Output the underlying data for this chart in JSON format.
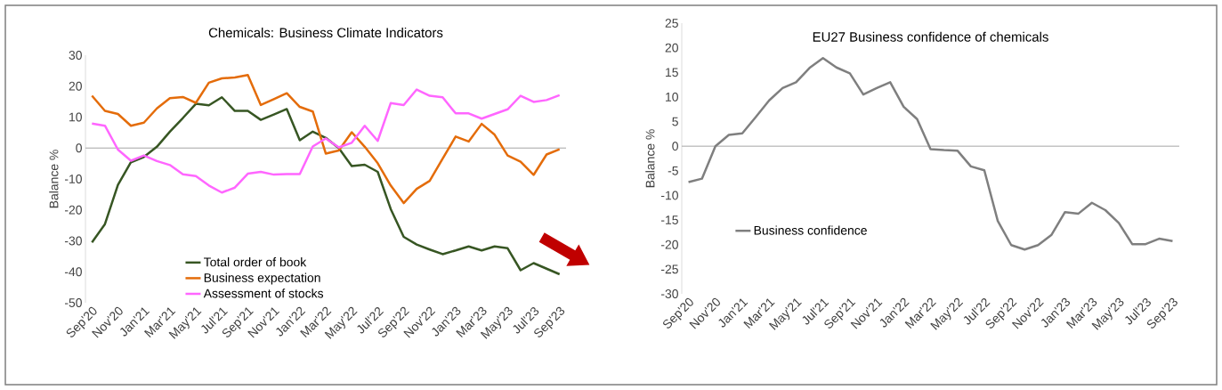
{
  "chart_data": [
    {
      "type": "line",
      "title": "Chemicals: Business Climate Indicators",
      "ylabel": "Balance %",
      "categories": [
        "Sep'20",
        null,
        "Nov'20",
        null,
        "Jan'21",
        null,
        "Mar'21",
        null,
        "May'21",
        null,
        "Jul'21",
        null,
        "Sep'21",
        null,
        "Nov'21",
        null,
        "Jan'22",
        null,
        "Mar'22",
        null,
        "May'22",
        null,
        "Jul'22",
        null,
        "Sep'22",
        null,
        "Nov'22",
        null,
        "Jan'23",
        null,
        "Mar'23",
        null,
        "May'23",
        null,
        "Jul'23",
        null,
        "Sep'23"
      ],
      "series": [
        {
          "name": "Total order of book",
          "color": "#375623",
          "values": [
            -30.5,
            -24.6,
            -11.9,
            -4.6,
            -2.9,
            0.4,
            5.3,
            9.7,
            14.3,
            13.8,
            16.4,
            12.0,
            12.0,
            9.1,
            10.8,
            12.6,
            2.5,
            5.3,
            3.3,
            0.0,
            -5.8,
            -5.4,
            -7.7,
            -19.7,
            -28.7,
            -31.2,
            -32.8,
            -34.3,
            -33.1,
            -31.8,
            -33.1,
            -31.8,
            -32.4,
            -39.5,
            -37.2,
            -39.0,
            -40.8
          ]
        },
        {
          "name": "Business expectation",
          "color": "#e46c0a",
          "values": [
            16.9,
            12.0,
            11.0,
            7.2,
            8.2,
            12.8,
            16.1,
            16.5,
            14.6,
            21.1,
            22.5,
            22.8,
            23.6,
            13.9,
            15.8,
            17.7,
            13.3,
            11.8,
            -1.8,
            -0.8,
            5.1,
            0.4,
            -4.9,
            -12.1,
            -17.8,
            -13.2,
            -10.6,
            -3.4,
            3.7,
            2.1,
            7.8,
            4.3,
            -2.4,
            -4.4,
            -8.7,
            -2.1,
            -0.4
          ]
        },
        {
          "name": "Assessment of stocks",
          "color": "#ff66ff",
          "values": [
            7.9,
            7.2,
            -0.5,
            -4.1,
            -2.4,
            -4.2,
            -5.5,
            -8.5,
            -9.1,
            -12.1,
            -14.4,
            -12.8,
            -8.3,
            -7.7,
            -8.6,
            -8.4,
            -8.4,
            0.5,
            3.1,
            0.2,
            1.7,
            7.2,
            2.3,
            14.5,
            13.9,
            18.9,
            16.9,
            16.4,
            11.2,
            11.2,
            9.5,
            11.0,
            12.5,
            16.9,
            14.9,
            15.5,
            17.1
          ]
        }
      ],
      "ylim": [
        -50,
        30
      ],
      "yticks": [
        -50,
        -40,
        -30,
        -20,
        -10,
        0,
        10,
        20,
        30
      ],
      "ref_lines": [
        {
          "axis": "y",
          "value": 0,
          "color": "#a6a6a6"
        }
      ],
      "legend": "bottom",
      "grid": false
    },
    {
      "type": "line",
      "title": "EU27 Business confidence of chemicals",
      "ylabel": "Balance %",
      "categories": [
        "Sep'20",
        null,
        "Nov'20",
        null,
        "Jan'21",
        null,
        "Mar'21",
        null,
        "May'21",
        null,
        "Jul'21",
        null,
        "Sep'21",
        null,
        "Nov'21",
        null,
        "Jan'22",
        null,
        "Mar'22",
        null,
        "May'22",
        null,
        "Jul'22",
        null,
        "Sep'22",
        null,
        "Nov'22",
        null,
        "Jan'23",
        null,
        "Mar'23",
        null,
        "May'23",
        null,
        "Jul'23",
        null,
        "Sep'23"
      ],
      "series": [
        {
          "name": "Business confidence",
          "color": "#7f7f7f",
          "values": [
            -7.3,
            -6.6,
            0.0,
            2.3,
            2.6,
            5.9,
            9.3,
            11.8,
            13.0,
            15.9,
            17.9,
            16.0,
            14.8,
            10.5,
            11.8,
            13.0,
            8.0,
            5.5,
            -0.6,
            -0.8,
            -0.9,
            -4.1,
            -4.9,
            -15.2,
            -20.1,
            -21.0,
            -20.1,
            -18.0,
            -13.4,
            -13.7,
            -11.5,
            -13.0,
            -15.6,
            -19.9,
            -19.9,
            -18.8,
            -19.3
          ]
        }
      ],
      "ylim": [
        -30,
        25
      ],
      "yticks": [
        -30,
        -25,
        -20,
        -15,
        -10,
        -5,
        0,
        5,
        10,
        15,
        20,
        25
      ],
      "ref_lines": [
        {
          "axis": "y",
          "value": 0,
          "color": "#a6a6a6"
        }
      ],
      "legend": "bottom left",
      "grid": false
    }
  ]
}
